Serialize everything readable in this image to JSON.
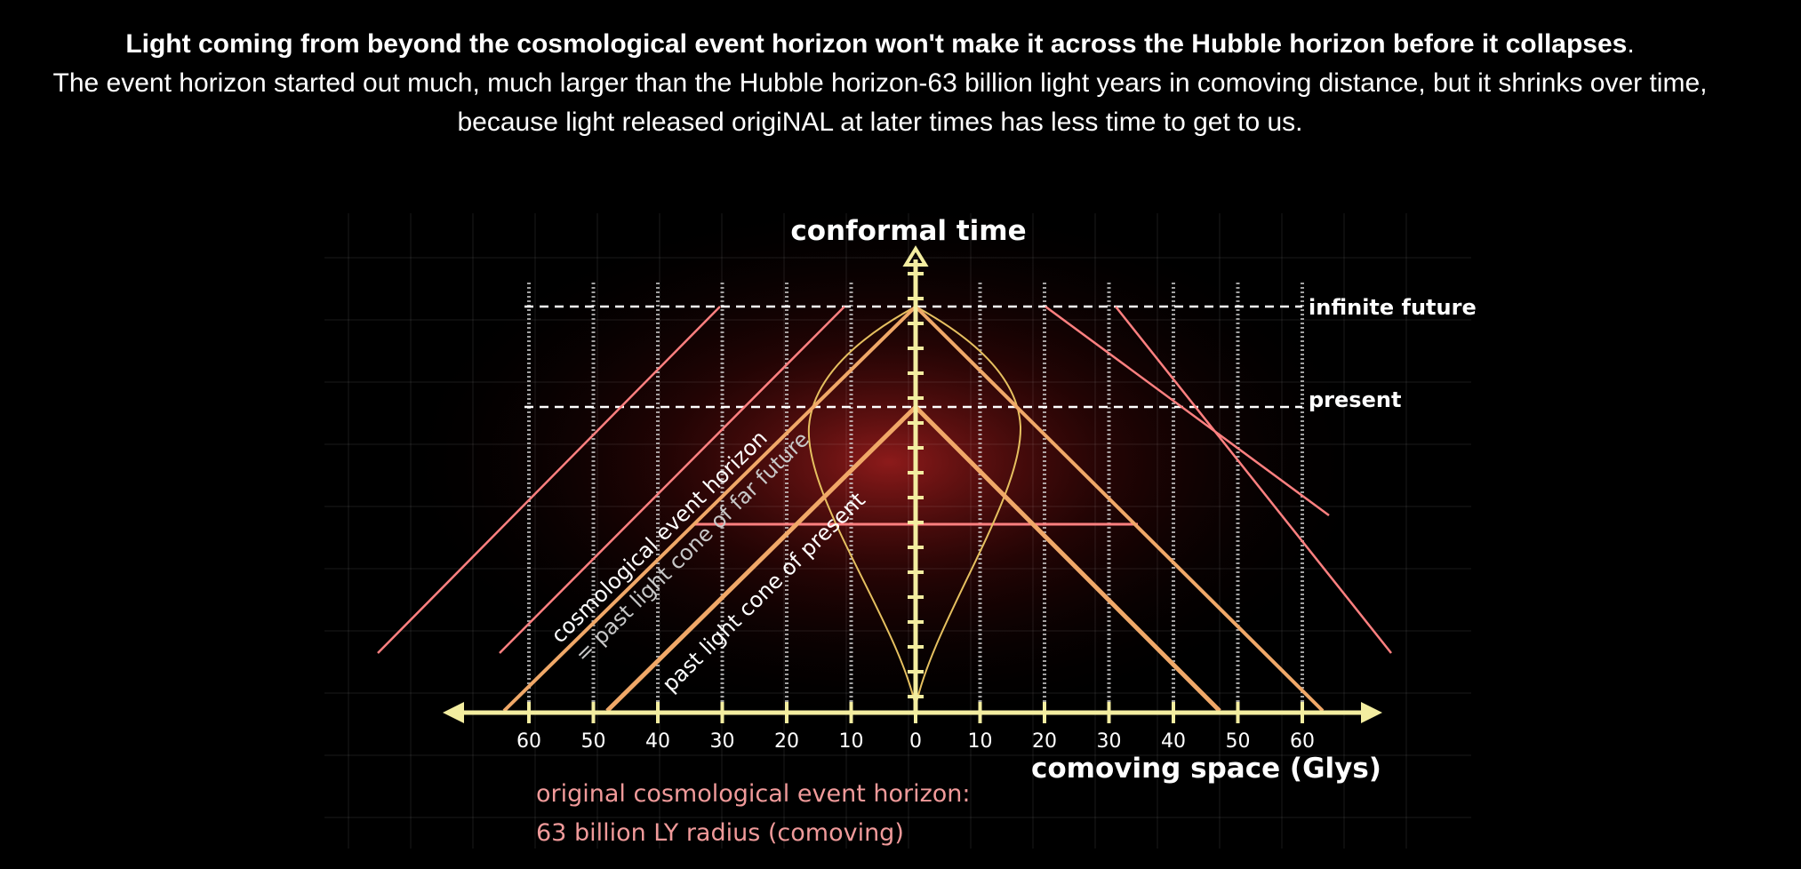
{
  "caption": {
    "bold": "Light coming from beyond the cosmological event horizon won't make it across the Hubble horizon before it collapses",
    "bold_end": ".",
    "normal": "The event horizon started out much, much larger than the Hubble horizon-63 billion light years in comoving distance, but it shrinks over time, because light released origiNAL at later times has less time to get to us."
  },
  "diagram": {
    "y_axis_title": "conformal time",
    "x_axis_title": "comoving space (Glys)",
    "x_tick_labels_left": [
      "60",
      "50",
      "40",
      "30",
      "20",
      "10"
    ],
    "x_tick_label_zero": "0",
    "x_tick_labels_right": [
      "10",
      "20",
      "30",
      "40",
      "50",
      "60"
    ],
    "x_tick_values_left": [
      60,
      50,
      40,
      30,
      20,
      10
    ],
    "x_tick_values_right": [
      10,
      20,
      30,
      40,
      50,
      60
    ],
    "level_infinite_future": "infinite future",
    "level_present": "present",
    "label_event_horizon_line1": "cosmological event horizon",
    "label_event_horizon_line2": "= past light cone of far future",
    "label_past_light_cone": "past light cone of present",
    "note_line1": "original cosmological event horizon:",
    "note_line2": "63 billion LY radius (comoving)",
    "colors": {
      "axis": "#f3eda0",
      "cone": "#f0a868",
      "hubble": "#e6c060",
      "red_line": "#ff6a6a",
      "note": "#f09a9a"
    }
  }
}
